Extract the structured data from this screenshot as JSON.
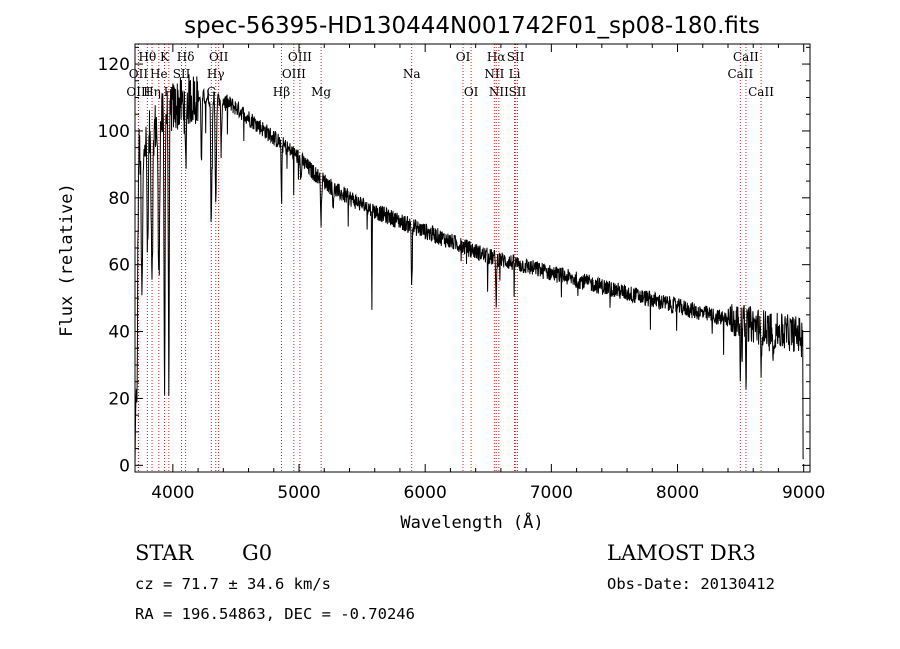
{
  "chart_data": {
    "type": "line",
    "title": "spec-56395-HD130444N001742F01_sp08-180.fits",
    "xlabel": "Wavelength (Å)",
    "ylabel": "Flux (relative)",
    "xlim": [
      3700,
      9050
    ],
    "ylim": [
      -2,
      126
    ],
    "xticks": [
      4000,
      5000,
      6000,
      7000,
      8000,
      9000
    ],
    "yticks": [
      0,
      20,
      40,
      60,
      80,
      100,
      120
    ],
    "continuum": [
      [
        3700,
        92
      ],
      [
        3800,
        98
      ],
      [
        3900,
        103
      ],
      [
        4000,
        107
      ],
      [
        4100,
        109
      ],
      [
        4200,
        110
      ],
      [
        4300,
        110
      ],
      [
        4400,
        109
      ],
      [
        4500,
        107
      ],
      [
        4600,
        104
      ],
      [
        4700,
        101
      ],
      [
        4800,
        98
      ],
      [
        4900,
        95
      ],
      [
        5000,
        92
      ],
      [
        5100,
        88
      ],
      [
        5200,
        85
      ],
      [
        5300,
        82
      ],
      [
        5400,
        80
      ],
      [
        5500,
        78
      ],
      [
        5600,
        76
      ],
      [
        5700,
        74.5
      ],
      [
        5800,
        73
      ],
      [
        5900,
        71.5
      ],
      [
        6000,
        70
      ],
      [
        6100,
        68.5
      ],
      [
        6200,
        67
      ],
      [
        6300,
        65.5
      ],
      [
        6400,
        64
      ],
      [
        6500,
        62.5
      ],
      [
        6600,
        61.5
      ],
      [
        6700,
        60.5
      ],
      [
        6800,
        59.5
      ],
      [
        6900,
        58.5
      ],
      [
        7000,
        57.5
      ],
      [
        7200,
        55.5
      ],
      [
        7400,
        53.5
      ],
      [
        7600,
        51.5
      ],
      [
        7800,
        49.5
      ],
      [
        8000,
        47.5
      ],
      [
        8200,
        45.5
      ],
      [
        8400,
        43.5
      ],
      [
        8600,
        42
      ],
      [
        8800,
        40
      ],
      [
        9000,
        39
      ]
    ],
    "absorption_features": [
      [
        3715,
        60,
        4
      ],
      [
        3755,
        45,
        6
      ],
      [
        3800,
        35,
        5
      ],
      [
        3835,
        40,
        6
      ],
      [
        3889,
        45,
        6
      ],
      [
        3934,
        80,
        4
      ],
      [
        3968,
        78,
        4
      ],
      [
        4101,
        20,
        5
      ],
      [
        4227,
        18,
        4
      ],
      [
        4305,
        35,
        5
      ],
      [
        4340,
        30,
        5
      ],
      [
        4383,
        15,
        4
      ],
      [
        4861,
        18,
        3
      ],
      [
        5015,
        6,
        4
      ],
      [
        5175,
        12,
        4
      ],
      [
        5270,
        5,
        4
      ],
      [
        5577,
        30,
        2
      ],
      [
        5893,
        18,
        3
      ],
      [
        6563,
        15,
        3
      ],
      [
        8498,
        15,
        3
      ],
      [
        8542,
        18,
        3
      ],
      [
        8662,
        16,
        3
      ],
      [
        8760,
        10,
        3
      ]
    ],
    "noise_amplitude": 2.5,
    "series": [
      {
        "name": "flux",
        "color": "#000000"
      }
    ],
    "line_color": "#cc2222",
    "lines": [
      {
        "label": "Hθ",
        "wave": 3798,
        "row": 0
      },
      {
        "label": "K",
        "wave": 3934,
        "row": 0
      },
      {
        "label": "Hδ",
        "wave": 4101,
        "row": 0
      },
      {
        "label": "OII",
        "wave": 4363,
        "row": 0
      },
      {
        "label": "OIII",
        "wave": 5007,
        "row": 0
      },
      {
        "label": "OI",
        "wave": 6300,
        "row": 0
      },
      {
        "label": "Hα",
        "wave": 6563,
        "row": 0
      },
      {
        "label": "SII",
        "wave": 6717,
        "row": 0
      },
      {
        "label": "CaII",
        "wave": 8542,
        "row": 0
      },
      {
        "label": "OII",
        "wave": 3727,
        "row": 1
      },
      {
        "label": "He",
        "wave": 3889,
        "row": 1
      },
      {
        "label": "SII",
        "wave": 4069,
        "row": 1
      },
      {
        "label": "Hγ",
        "wave": 4340,
        "row": 1
      },
      {
        "label": "OIII",
        "wave": 4959,
        "row": 1
      },
      {
        "label": "Na",
        "wave": 5893,
        "row": 1
      },
      {
        "label": "NII",
        "wave": 6548,
        "row": 1
      },
      {
        "label": "Li",
        "wave": 6708,
        "row": 1
      },
      {
        "label": "CaII",
        "wave": 8498,
        "row": 1
      },
      {
        "label": "OIII",
        "wave": 3727,
        "row": 2
      },
      {
        "label": "Hη",
        "wave": 3835,
        "row": 2
      },
      {
        "label": "H",
        "wave": 3968,
        "row": 2
      },
      {
        "label": "G",
        "wave": 4305,
        "row": 2
      },
      {
        "label": "Hβ",
        "wave": 4861,
        "row": 2
      },
      {
        "label": "Mg",
        "wave": 5175,
        "row": 2
      },
      {
        "label": "OI",
        "wave": 6364,
        "row": 2
      },
      {
        "label": "NII",
        "wave": 6584,
        "row": 2
      },
      {
        "label": "SII",
        "wave": 6731,
        "row": 2
      },
      {
        "label": "CaII",
        "wave": 8662,
        "row": 2
      }
    ]
  },
  "info": {
    "object_class": "STAR",
    "subclass": "G0",
    "survey": "LAMOST DR3",
    "redshift": "cz = 71.7 ± 34.6 km/s",
    "obs_date": "Obs-Date: 20130412",
    "coords": "RA = 196.54863, DEC =  -0.70246"
  }
}
